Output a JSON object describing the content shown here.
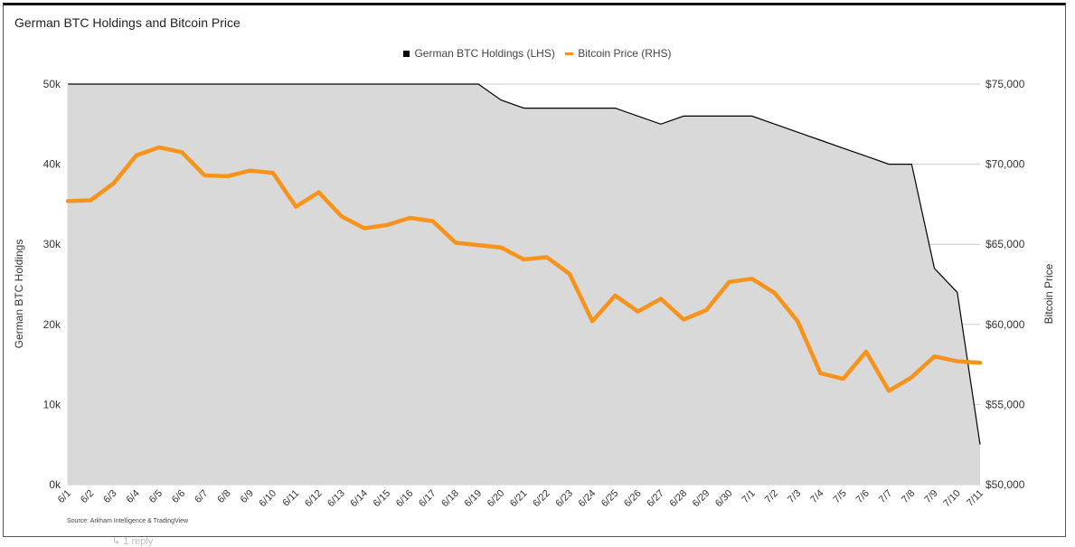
{
  "footer": {
    "reply_label": "↳ 1 reply"
  },
  "chart_data": {
    "type": "area+line",
    "title": "German BTC Holdings and Bitcoin Price",
    "source": "Source: Arkham Intelligence & TradingView",
    "legend": {
      "position": "top-center",
      "entries": [
        "German BTC Holdings (LHS)",
        "Bitcoin Price (RHS)"
      ]
    },
    "ylabel_left": "German BTC Holdings",
    "ylabel_right": "Bitcoin Price",
    "ylim_left": [
      0,
      50000
    ],
    "ylim_right": [
      50000,
      75000
    ],
    "left_ticks": [
      "0k",
      "10k",
      "20k",
      "30k",
      "40k",
      "50k"
    ],
    "right_ticks": [
      "$50,000",
      "$55,000",
      "$60,000",
      "$65,000",
      "$70,000",
      "$75,000"
    ],
    "categories": [
      "6/1",
      "6/2",
      "6/3",
      "6/4",
      "6/5",
      "6/6",
      "6/7",
      "6/8",
      "6/9",
      "6/10",
      "6/11",
      "6/12",
      "6/13",
      "6/14",
      "6/15",
      "6/16",
      "6/17",
      "6/18",
      "6/19",
      "6/20",
      "6/21",
      "6/22",
      "6/23",
      "6/24",
      "6/25",
      "6/26",
      "6/27",
      "6/28",
      "6/29",
      "6/30",
      "7/1",
      "7/2",
      "7/3",
      "7/4",
      "7/5",
      "7/6",
      "7/7",
      "7/8",
      "7/9",
      "7/10",
      "7/11"
    ],
    "series": [
      {
        "name": "German BTC Holdings (LHS)",
        "axis": "left",
        "color": "#000000",
        "fill": "#d9d9d9",
        "values": [
          50000,
          50000,
          50000,
          50000,
          50000,
          50000,
          50000,
          50000,
          50000,
          50000,
          50000,
          50000,
          50000,
          50000,
          50000,
          50000,
          50000,
          50000,
          50000,
          48000,
          47000,
          47000,
          47000,
          47000,
          47000,
          46000,
          45000,
          46000,
          46000,
          46000,
          46000,
          45000,
          44000,
          43000,
          42000,
          41000,
          40000,
          40000,
          27000,
          24000,
          5000
        ]
      },
      {
        "name": "Bitcoin Price (RHS)",
        "axis": "right",
        "color": "#f7931a",
        "values": [
          67700,
          67750,
          68800,
          70550,
          71050,
          70750,
          69300,
          69250,
          69600,
          69450,
          67350,
          68250,
          66750,
          66000,
          66200,
          66650,
          66450,
          65100,
          64950,
          64800,
          64050,
          64200,
          63150,
          60200,
          61800,
          60800,
          61600,
          60300,
          60900,
          62650,
          62850,
          61950,
          60200,
          56950,
          56600,
          58300,
          55850,
          56700,
          58000,
          57700,
          57600
        ]
      }
    ]
  },
  "colors": {
    "accent": "#f7931a",
    "area": "#d9d9d9",
    "grid": "#cccccc"
  }
}
